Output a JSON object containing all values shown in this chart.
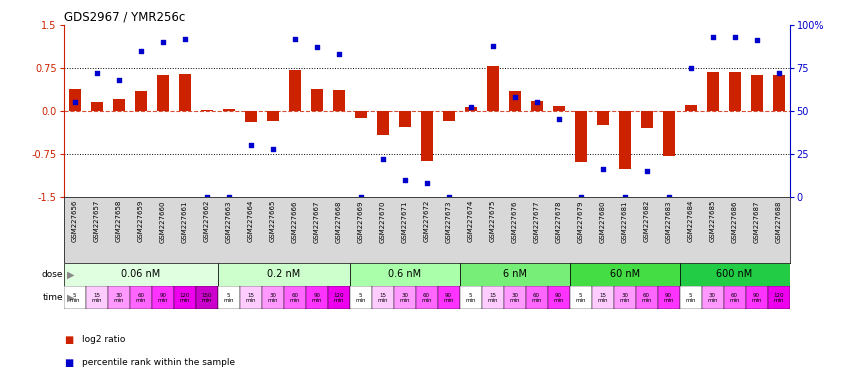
{
  "title": "GDS2967 / YMR256c",
  "samples": [
    "GSM227656",
    "GSM227657",
    "GSM227658",
    "GSM227659",
    "GSM227660",
    "GSM227661",
    "GSM227662",
    "GSM227663",
    "GSM227664",
    "GSM227665",
    "GSM227666",
    "GSM227667",
    "GSM227668",
    "GSM227669",
    "GSM227670",
    "GSM227671",
    "GSM227672",
    "GSM227673",
    "GSM227674",
    "GSM227675",
    "GSM227676",
    "GSM227677",
    "GSM227678",
    "GSM227679",
    "GSM227680",
    "GSM227681",
    "GSM227682",
    "GSM227683",
    "GSM227684",
    "GSM227685",
    "GSM227686",
    "GSM227687",
    "GSM227688"
  ],
  "log2_ratio": [
    0.38,
    0.16,
    0.2,
    0.35,
    0.62,
    0.65,
    0.02,
    0.03,
    -0.2,
    -0.18,
    0.72,
    0.38,
    0.36,
    -0.12,
    -0.42,
    -0.28,
    -0.88,
    -0.18,
    0.06,
    0.78,
    0.35,
    0.18,
    0.08,
    -0.9,
    -0.25,
    -1.02,
    -0.3,
    -0.78,
    0.1,
    0.68,
    0.68,
    0.62,
    0.62
  ],
  "percentile": [
    55,
    72,
    68,
    85,
    90,
    92,
    0,
    0,
    30,
    28,
    92,
    87,
    83,
    0,
    22,
    10,
    8,
    0,
    52,
    88,
    58,
    55,
    45,
    0,
    16,
    0,
    15,
    0,
    75,
    93,
    93,
    91,
    72
  ],
  "doses": [
    {
      "label": "0.06 nM",
      "start": 0,
      "end": 7,
      "color": "#e0ffe0"
    },
    {
      "label": "0.2 nM",
      "start": 7,
      "end": 13,
      "color": "#ccffcc"
    },
    {
      "label": "0.6 nM",
      "start": 13,
      "end": 18,
      "color": "#aaffaa"
    },
    {
      "label": "6 nM",
      "start": 18,
      "end": 23,
      "color": "#77ee77"
    },
    {
      "label": "60 nM",
      "start": 23,
      "end": 28,
      "color": "#44dd44"
    },
    {
      "label": "600 nM",
      "start": 28,
      "end": 33,
      "color": "#22cc44"
    }
  ],
  "time_labels": [
    "5\nmin",
    "15\nmin",
    "30\nmin",
    "60\nmin",
    "90\nmin",
    "120\nmin",
    "150\nmin",
    "5\nmin",
    "15\nmin",
    "30\nmin",
    "60\nmin",
    "90\nmin",
    "120\nmin",
    "5\nmin",
    "15\nmin",
    "30\nmin",
    "60\nmin",
    "90\nmin",
    "5\nmin",
    "15\nmin",
    "30\nmin",
    "60\nmin",
    "90\nmin",
    "5\nmin",
    "15\nmin",
    "30\nmin",
    "60\nmin",
    "90\nmin",
    "5\nmin",
    "30\nmin",
    "60\nmin",
    "90\nmin",
    "120\nmin"
  ],
  "time_colors": [
    "#ffffff",
    "#ffccff",
    "#ff99ff",
    "#ff66ff",
    "#ff33ff",
    "#ee00ee",
    "#cc00cc",
    "#ffffff",
    "#ffccff",
    "#ff99ff",
    "#ff66ff",
    "#ff33ff",
    "#ee00ee",
    "#ffffff",
    "#ffccff",
    "#ff99ff",
    "#ff66ff",
    "#ff33ff",
    "#ffffff",
    "#ffccff",
    "#ff99ff",
    "#ff66ff",
    "#ff33ff",
    "#ffffff",
    "#ffccff",
    "#ff99ff",
    "#ff66ff",
    "#ff33ff",
    "#ffffff",
    "#ff99ff",
    "#ff66ff",
    "#ff33ff",
    "#ee00ee"
  ],
  "bar_color": "#cc2200",
  "dot_color": "#0000cc",
  "bg_color": "#ffffff",
  "ylim": [
    -1.5,
    1.5
  ],
  "yticks_left": [
    -1.5,
    -0.75,
    0.0,
    0.75,
    1.5
  ],
  "yticks_right": [
    0,
    25,
    50,
    75,
    100
  ],
  "hlines": [
    0.75,
    -0.75
  ],
  "legend_items": [
    {
      "color": "#cc2200",
      "label": "log2 ratio"
    },
    {
      "color": "#0000cc",
      "label": "percentile rank within the sample"
    }
  ]
}
